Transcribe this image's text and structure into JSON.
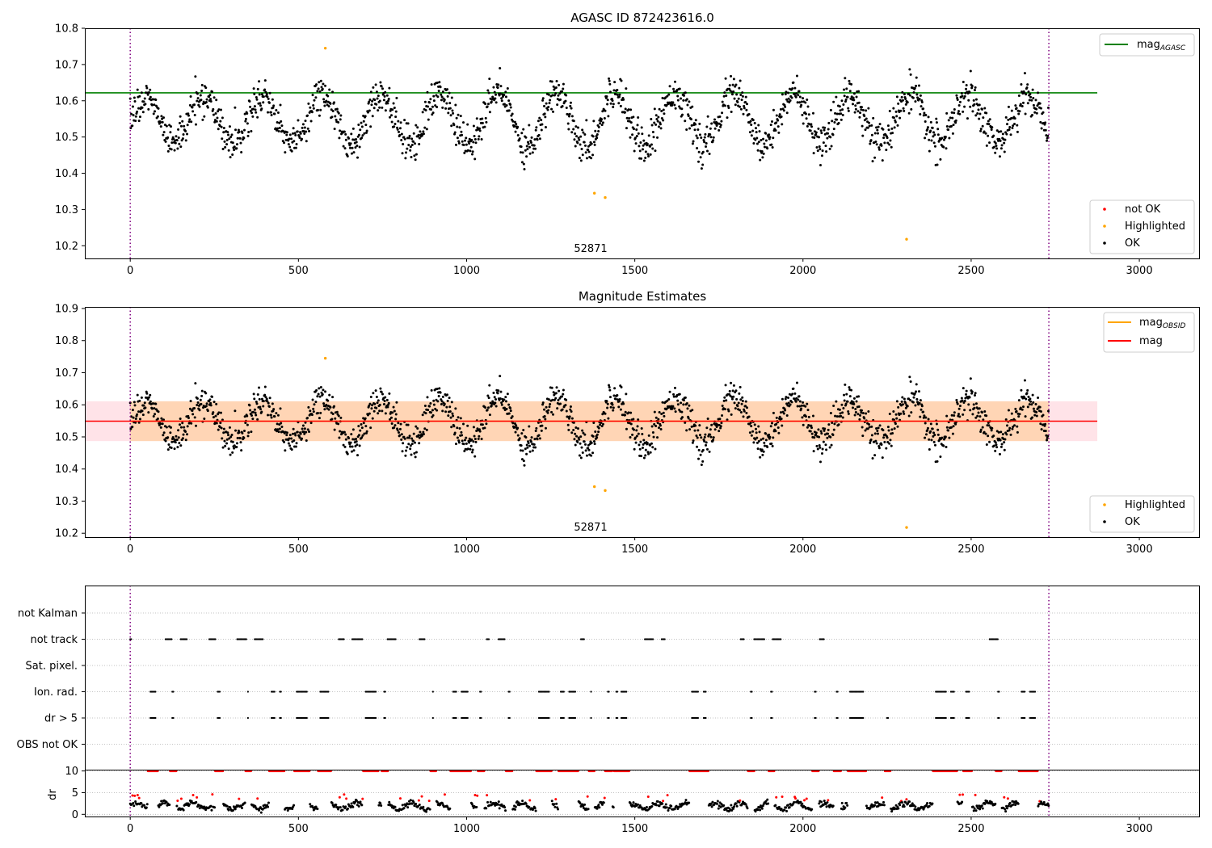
{
  "chart_data": [
    {
      "type": "scatter",
      "title": "AGASC ID 872423616.0",
      "xlabel": "",
      "ylabel": "",
      "xlim": [
        -135,
        3180
      ],
      "ylim": [
        10.165,
        10.8
      ],
      "x_ticks": [
        0,
        500,
        1000,
        1500,
        2000,
        2500,
        3000
      ],
      "y_ticks": [
        10.2,
        10.3,
        10.4,
        10.5,
        10.6,
        10.7,
        10.8
      ],
      "obsid_label": {
        "text": "52871",
        "x": 1365,
        "y": 10.19
      },
      "obs_bounds": [
        0,
        2731
      ],
      "reference_line": {
        "name": "mag",
        "subscript": "AGASC",
        "y": 10.622,
        "x_range": [
          -135,
          2875
        ],
        "color": "#008000"
      },
      "series": [
        {
          "name": "not OK",
          "color": "#ff0000",
          "points": []
        },
        {
          "name": "Highlighted",
          "color": "#ffa500",
          "points": [
            [
              580,
              10.745
            ],
            [
              1380,
              10.345
            ],
            [
              1412,
              10.333
            ],
            [
              2308,
              10.218
            ]
          ]
        },
        {
          "name": "OK",
          "color": "#000000",
          "generator": {
            "n": 2731,
            "baseline": 10.55,
            "amplitude": 0.068,
            "period": 175,
            "noise": 0.045
          }
        }
      ],
      "legend_upper": {
        "placement": "upper right",
        "entries": [
          "mag"
        ]
      },
      "legend_lower": {
        "placement": "lower right",
        "entries": [
          "not OK",
          "Highlighted",
          "OK"
        ]
      }
    },
    {
      "type": "scatter",
      "title": "Magnitude Estimates",
      "xlabel": "",
      "ylabel": "",
      "xlim": [
        -135,
        3180
      ],
      "ylim": [
        10.188,
        10.905
      ],
      "x_ticks": [
        0,
        500,
        1000,
        1500,
        2000,
        2500,
        3000
      ],
      "y_ticks": [
        10.2,
        10.3,
        10.4,
        10.5,
        10.6,
        10.7,
        10.8,
        10.9
      ],
      "obsid_label": {
        "text": "52871",
        "x": 1365,
        "y": 10.213
      },
      "obs_bounds": [
        0,
        2731
      ],
      "mag_line": {
        "name": "mag",
        "y": 10.549,
        "x_range": [
          -135,
          2875
        ],
        "color": "#ff0000",
        "band": [
          10.487,
          10.611
        ],
        "band_color": "#ffc0cb"
      },
      "obsid_line": {
        "name": "mag",
        "subscript": "OBSID",
        "y": 10.549,
        "x_range": [
          0,
          2731
        ],
        "color": "#ffa500",
        "band": [
          10.487,
          10.611
        ]
      },
      "series": [
        {
          "name": "Highlighted",
          "color": "#ffa500",
          "points": [
            [
              580,
              10.745
            ],
            [
              1380,
              10.345
            ],
            [
              1412,
              10.333
            ],
            [
              2308,
              10.218
            ]
          ]
        },
        {
          "name": "OK",
          "color": "#000000"
        }
      ],
      "legend_upper": {
        "placement": "upper right",
        "entries": [
          "mag_OBSID",
          "mag"
        ]
      },
      "legend_lower": {
        "placement": "lower right",
        "entries": [
          "Highlighted",
          "OK"
        ]
      }
    },
    {
      "type": "scatter",
      "title": "",
      "xlabel": "",
      "ylabel": "",
      "xlim": [
        -135,
        3180
      ],
      "x_ticks": [
        0,
        500,
        1000,
        1500,
        2000,
        2500,
        3000
      ],
      "obs_bounds": [
        0,
        2731
      ],
      "flag_categories": [
        "OBS not OK",
        "dr > 5",
        "Ion. rad.",
        "Sat. pixel.",
        "not track",
        "not Kalman"
      ],
      "flags": {
        "not Kalman": [],
        "not track": [
          [
            0,
            5
          ],
          [
            105,
            125
          ],
          [
            150,
            170
          ],
          [
            235,
            255
          ],
          [
            318,
            345
          ],
          [
            370,
            395
          ],
          [
            620,
            635
          ],
          [
            660,
            690
          ],
          [
            765,
            790
          ],
          [
            860,
            875
          ],
          [
            1060,
            1068
          ],
          [
            1095,
            1115
          ],
          [
            1340,
            1350
          ],
          [
            1530,
            1555
          ],
          [
            1580,
            1590
          ],
          [
            1815,
            1825
          ],
          [
            1855,
            1885
          ],
          [
            1910,
            1935
          ],
          [
            2050,
            2062
          ],
          [
            2555,
            2580
          ]
        ],
        "Sat. pixel.": [],
        "Ion. rad.": [
          [
            60,
            75
          ],
          [
            125,
            130
          ],
          [
            260,
            268
          ],
          [
            350,
            352
          ],
          [
            420,
            430
          ],
          [
            445,
            450
          ],
          [
            495,
            525
          ],
          [
            565,
            590
          ],
          [
            700,
            730
          ],
          [
            755,
            758
          ],
          [
            900,
            902
          ],
          [
            960,
            970
          ],
          [
            985,
            1005
          ],
          [
            1040,
            1045
          ],
          [
            1125,
            1128
          ],
          [
            1215,
            1245
          ],
          [
            1280,
            1290
          ],
          [
            1305,
            1325
          ],
          [
            1370,
            1372
          ],
          [
            1420,
            1425
          ],
          [
            1445,
            1450
          ],
          [
            1460,
            1475
          ],
          [
            1670,
            1690
          ],
          [
            1705,
            1712
          ],
          [
            1845,
            1848
          ],
          [
            1905,
            1908
          ],
          [
            2035,
            2040
          ],
          [
            2100,
            2105
          ],
          [
            2140,
            2180
          ],
          [
            2395,
            2425
          ],
          [
            2440,
            2450
          ],
          [
            2485,
            2495
          ],
          [
            2580,
            2583
          ],
          [
            2650,
            2660
          ],
          [
            2675,
            2690
          ]
        ],
        "dr > 5": [
          [
            60,
            75
          ],
          [
            125,
            130
          ],
          [
            260,
            268
          ],
          [
            350,
            352
          ],
          [
            420,
            430
          ],
          [
            445,
            450
          ],
          [
            495,
            525
          ],
          [
            565,
            590
          ],
          [
            700,
            730
          ],
          [
            755,
            758
          ],
          [
            900,
            902
          ],
          [
            960,
            970
          ],
          [
            985,
            1005
          ],
          [
            1040,
            1045
          ],
          [
            1125,
            1128
          ],
          [
            1215,
            1245
          ],
          [
            1280,
            1290
          ],
          [
            1305,
            1325
          ],
          [
            1370,
            1372
          ],
          [
            1420,
            1425
          ],
          [
            1445,
            1450
          ],
          [
            1460,
            1475
          ],
          [
            1670,
            1690
          ],
          [
            1705,
            1712
          ],
          [
            1845,
            1848
          ],
          [
            1905,
            1908
          ],
          [
            2035,
            2040
          ],
          [
            2100,
            2105
          ],
          [
            2140,
            2180
          ],
          [
            2250,
            2253
          ],
          [
            2395,
            2425
          ],
          [
            2440,
            2450
          ],
          [
            2485,
            2495
          ],
          [
            2580,
            2583
          ],
          [
            2650,
            2660
          ],
          [
            2675,
            2690
          ]
        ],
        "OBS not OK": []
      },
      "dr_panel": {
        "ylabel": "dr",
        "ylim": [
          -0.5,
          10.3
        ],
        "y_ticks": [
          0,
          5,
          10
        ],
        "clip": 10,
        "baseline": 1.9,
        "series": [
          {
            "name": "OK",
            "color": "#000000"
          },
          {
            "name": "not OK",
            "color": "#ff0000"
          }
        ]
      }
    }
  ]
}
